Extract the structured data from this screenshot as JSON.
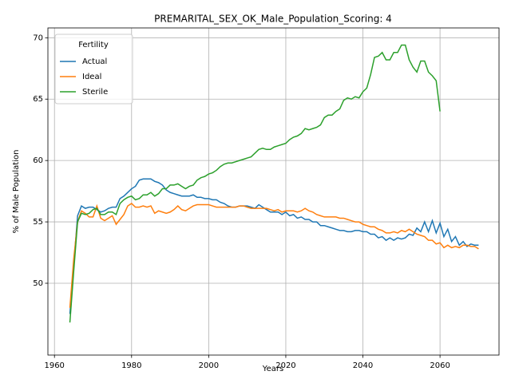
{
  "chart_data": {
    "type": "line",
    "title": "PREMARITAL_SEX_OK_Male_Population_Scoring: 4",
    "x_label": "Years",
    "y_label": "% of Male Population",
    "legend_title": "Fertility",
    "legend_position": "upper left",
    "grid": true,
    "xlim": [
      1958.3,
      2075.3
    ],
    "ylim": [
      44.15,
      70.8
    ],
    "xticks": [
      1960,
      1980,
      2000,
      2020,
      2040,
      2060
    ],
    "yticks": [
      50,
      55,
      60,
      65,
      70
    ],
    "x": [
      1964,
      1965,
      1966,
      1967,
      1968,
      1969,
      1970,
      1971,
      1972,
      1973,
      1974,
      1975,
      1976,
      1977,
      1978,
      1979,
      1980,
      1981,
      1982,
      1983,
      1984,
      1985,
      1986,
      1987,
      1988,
      1989,
      1990,
      1991,
      1992,
      1993,
      1994,
      1995,
      1996,
      1997,
      1998,
      1999,
      2000,
      2001,
      2002,
      2003,
      2004,
      2005,
      2006,
      2007,
      2008,
      2009,
      2010,
      2011,
      2012,
      2013,
      2014,
      2015,
      2016,
      2017,
      2018,
      2019,
      2020,
      2021,
      2022,
      2023,
      2024,
      2025,
      2026,
      2027,
      2028,
      2029,
      2030,
      2031,
      2032,
      2033,
      2034,
      2035,
      2036,
      2037,
      2038,
      2039,
      2040,
      2041,
      2042,
      2043,
      2044,
      2045,
      2046,
      2047,
      2048,
      2049,
      2050,
      2051,
      2052,
      2053,
      2054,
      2055,
      2056,
      2057,
      2058,
      2059,
      2060,
      2061,
      2062,
      2063,
      2064,
      2065,
      2066,
      2067,
      2068,
      2069,
      2070
    ],
    "series": [
      {
        "name": "Actual",
        "color": "#1f77b4",
        "values": [
          47.5,
          51.5,
          55.5,
          56.3,
          56.1,
          56.2,
          56.2,
          56.0,
          55.8,
          55.9,
          56.1,
          56.2,
          56.2,
          56.9,
          57.1,
          57.4,
          57.7,
          57.9,
          58.4,
          58.5,
          58.5,
          58.5,
          58.3,
          58.2,
          58.0,
          57.6,
          57.4,
          57.3,
          57.2,
          57.1,
          57.1,
          57.1,
          57.2,
          57.0,
          57.0,
          56.9,
          56.9,
          56.8,
          56.8,
          56.6,
          56.5,
          56.3,
          56.2,
          56.2,
          56.3,
          56.3,
          56.3,
          56.2,
          56.1,
          56.4,
          56.2,
          56.0,
          55.8,
          55.8,
          55.8,
          55.6,
          55.8,
          55.5,
          55.6,
          55.3,
          55.4,
          55.2,
          55.2,
          55.0,
          55.0,
          54.7,
          54.7,
          54.6,
          54.5,
          54.4,
          54.3,
          54.3,
          54.2,
          54.2,
          54.3,
          54.3,
          54.2,
          54.2,
          54.0,
          54.0,
          53.7,
          53.8,
          53.5,
          53.7,
          53.5,
          53.7,
          53.6,
          53.7,
          54.0,
          53.9,
          54.5,
          54.2,
          55.0,
          54.2,
          55.1,
          54.1,
          54.9,
          53.8,
          54.4,
          53.4,
          53.8,
          53.1,
          53.4,
          53.0,
          53.2,
          53.1,
          53.1
        ]
      },
      {
        "name": "Ideal",
        "color": "#ff7f0e",
        "values": [
          48.0,
          52.0,
          55.0,
          55.9,
          55.7,
          55.4,
          55.4,
          56.3,
          55.3,
          55.1,
          55.3,
          55.5,
          54.8,
          55.2,
          55.6,
          56.3,
          56.5,
          56.2,
          56.2,
          56.3,
          56.2,
          56.3,
          55.7,
          55.9,
          55.8,
          55.7,
          55.8,
          56.0,
          56.3,
          56.0,
          55.9,
          56.1,
          56.3,
          56.4,
          56.4,
          56.4,
          56.4,
          56.3,
          56.2,
          56.2,
          56.2,
          56.2,
          56.2,
          56.2,
          56.3,
          56.3,
          56.2,
          56.1,
          56.1,
          56.1,
          56.1,
          56.1,
          56.0,
          55.9,
          56.0,
          55.8,
          55.9,
          55.9,
          55.9,
          55.8,
          55.9,
          56.1,
          55.9,
          55.8,
          55.6,
          55.5,
          55.4,
          55.4,
          55.4,
          55.4,
          55.3,
          55.3,
          55.2,
          55.1,
          55.0,
          55.0,
          54.8,
          54.7,
          54.6,
          54.6,
          54.4,
          54.3,
          54.1,
          54.1,
          54.2,
          54.1,
          54.3,
          54.2,
          54.4,
          54.2,
          54.0,
          53.9,
          53.8,
          53.5,
          53.5,
          53.2,
          53.3,
          52.9,
          53.1,
          52.9,
          53.0,
          52.9,
          53.1,
          53.1,
          53.0,
          53.0,
          52.8
        ]
      },
      {
        "name": "Sterile",
        "color": "#2ca02c",
        "values": [
          46.8,
          51.0,
          55.0,
          55.7,
          55.6,
          55.7,
          56.0,
          56.1,
          55.6,
          55.6,
          55.8,
          55.8,
          55.6,
          56.5,
          56.8,
          57.0,
          57.1,
          56.8,
          56.9,
          57.2,
          57.2,
          57.4,
          57.1,
          57.3,
          57.7,
          57.7,
          58.0,
          58.0,
          58.1,
          57.9,
          57.7,
          57.9,
          58.0,
          58.4,
          58.6,
          58.7,
          58.9,
          59.0,
          59.2,
          59.5,
          59.7,
          59.8,
          59.8,
          59.9,
          60.0,
          60.1,
          60.2,
          60.3,
          60.6,
          60.9,
          61.0,
          60.9,
          60.9,
          61.1,
          61.2,
          61.3,
          61.4,
          61.7,
          61.9,
          62.0,
          62.2,
          62.6,
          62.5,
          62.6,
          62.7,
          62.9,
          63.5,
          63.7,
          63.7,
          64.0,
          64.2,
          64.9,
          65.1,
          65.0,
          65.2,
          65.1,
          65.6,
          65.9,
          67.0,
          68.4,
          68.5,
          68.8,
          68.2,
          68.2,
          68.8,
          68.8,
          69.4,
          69.4,
          68.2,
          67.6,
          67.2,
          68.1,
          68.1,
          67.2,
          66.9,
          66.5,
          64.0,
          null,
          null,
          null,
          null,
          null,
          null,
          null,
          null,
          null,
          null
        ]
      }
    ]
  }
}
